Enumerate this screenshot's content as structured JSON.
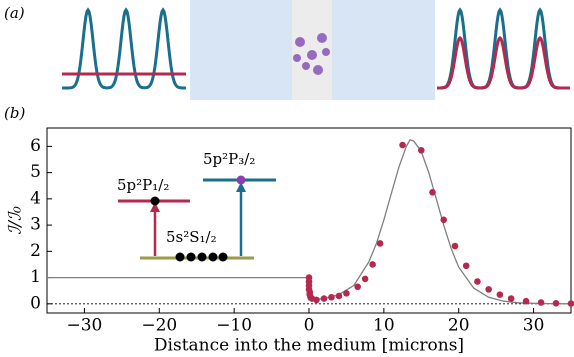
{
  "panel_a_label": "(a)",
  "chart_data": {
    "type": "line",
    "panel_label": "(b)",
    "x_label": "Distance into the medium [microns]",
    "y_label": "ℐ/ℐ₀",
    "xlim": [
      -35,
      35
    ],
    "ylim": [
      -0.35,
      6.7
    ],
    "xticks": [
      {
        "value": -30,
        "label": "−30"
      },
      {
        "value": -20,
        "label": "−20"
      },
      {
        "value": -10,
        "label": "−10"
      },
      0,
      10,
      20,
      30
    ],
    "yticks": [
      0,
      1,
      2,
      3,
      4,
      5,
      6
    ],
    "reference_line": 0,
    "annotations": [
      "5p²P₁/₂",
      "5p²P₃/₂",
      "5s²S₁/₂"
    ],
    "series": [
      {
        "color": "#808080",
        "marker": false,
        "x": [
          -35,
          0,
          0,
          2,
          4,
          6,
          8,
          9,
          10,
          11,
          12,
          13,
          13.5,
          14,
          15,
          16,
          17,
          18,
          19,
          20,
          22,
          24,
          26,
          28,
          30,
          32,
          35
        ],
        "values": [
          1,
          1,
          0.15,
          0.2,
          0.35,
          0.7,
          1.6,
          2.3,
          3.2,
          4.2,
          5.2,
          6.0,
          6.25,
          6.2,
          5.8,
          5.0,
          4.0,
          3.0,
          2.1,
          1.4,
          0.6,
          0.25,
          0.1,
          0.04,
          0.02,
          0.01,
          0
        ]
      },
      {
        "color": "#b5294f",
        "marker": true,
        "x": [
          0,
          0,
          0,
          0,
          0.1,
          0.1,
          0.2,
          0.4,
          1,
          2,
          3,
          4,
          5,
          6.5,
          7.5,
          8.5,
          9.5,
          12.5,
          15,
          16.5,
          18,
          19.5,
          21,
          22.5,
          24,
          25.5,
          27,
          29,
          31,
          33,
          35
        ],
        "values": [
          1.0,
          0.85,
          0.7,
          0.55,
          0.45,
          0.35,
          0.25,
          0.2,
          0.15,
          0.2,
          0.25,
          0.3,
          0.4,
          0.65,
          0.95,
          1.5,
          2.3,
          6.05,
          5.85,
          4.25,
          3.2,
          2.2,
          1.45,
          0.85,
          0.55,
          0.35,
          0.2,
          0.1,
          0.05,
          0.02,
          0.01
        ]
      }
    ]
  }
}
